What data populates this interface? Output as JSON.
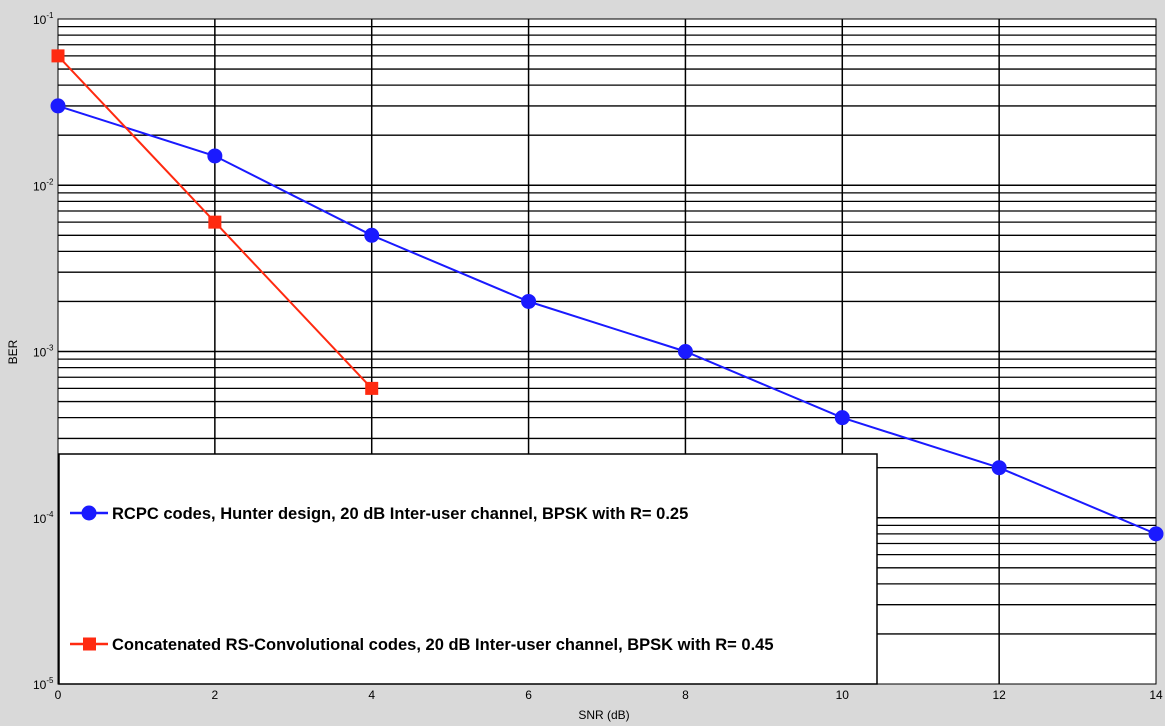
{
  "chart_data": {
    "type": "line",
    "xlabel": "SNR (dB)",
    "ylabel": "BER",
    "xlim": [
      0,
      14
    ],
    "ylim": [
      1e-05,
      0.1
    ],
    "y_scale": "log",
    "grid": true,
    "legend_position": "bottom-left",
    "x_ticks": [
      0,
      2,
      4,
      6,
      8,
      10,
      12,
      14
    ],
    "y_ticks": [
      {
        "value": 0.1,
        "base": "10",
        "exp": "-1"
      },
      {
        "value": 0.01,
        "base": "10",
        "exp": "-2"
      },
      {
        "value": 0.001,
        "base": "10",
        "exp": "-3"
      },
      {
        "value": 0.0001,
        "base": "10",
        "exp": "-4"
      },
      {
        "value": 1e-05,
        "base": "10",
        "exp": "-5"
      }
    ],
    "series": [
      {
        "name": "RCPC codes, Hunter design, 20 dB Inter-user channel, BPSK with R= 0.25",
        "color": "#1a1aff",
        "marker": "circle",
        "x": [
          0,
          2,
          4,
          6,
          8,
          10,
          12,
          14
        ],
        "y": [
          0.03,
          0.015,
          0.005,
          0.002,
          0.001,
          0.0004,
          0.0002,
          8e-05
        ]
      },
      {
        "name": "Concatenated RS-Convolutional codes, 20 dB Inter-user channel, BPSK with R= 0.45",
        "color": "#ff2a10",
        "marker": "square",
        "x": [
          0,
          2,
          4
        ],
        "y": [
          0.06,
          0.006,
          0.0006
        ]
      }
    ]
  }
}
